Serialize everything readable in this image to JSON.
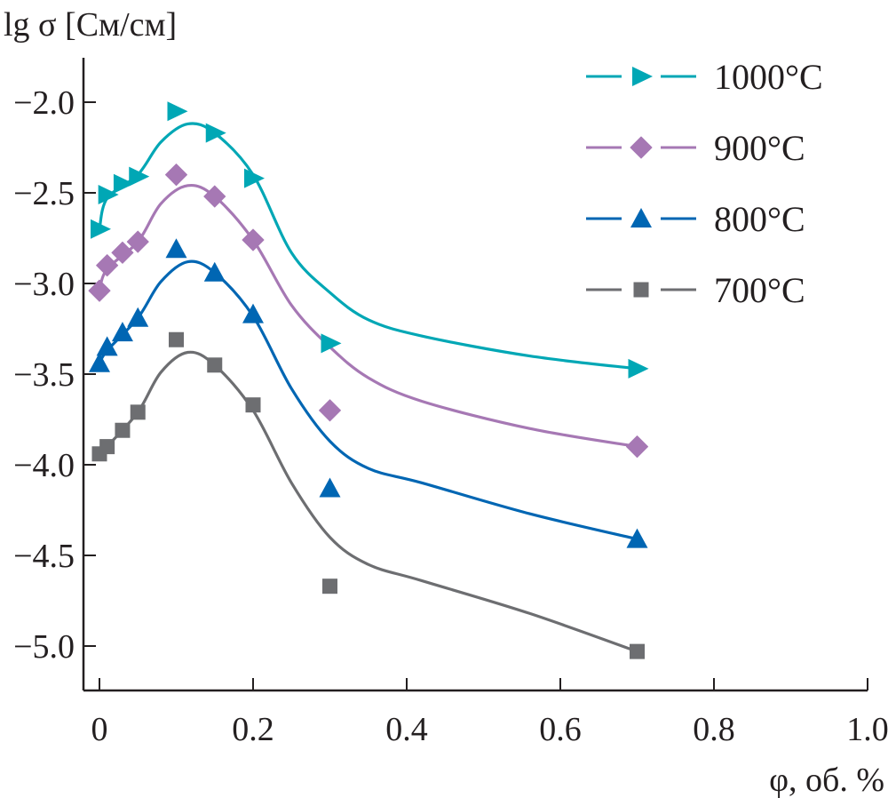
{
  "chart_data": {
    "type": "scatter",
    "title": "",
    "ylabel": "lg σ [См/см]",
    "xlabel": "φ, об. %",
    "xlim": [
      -0.015,
      1.0
    ],
    "ylim": [
      -5.25,
      -1.75
    ],
    "xticks": [
      0,
      0.2,
      0.4,
      0.6,
      0.8,
      1.0
    ],
    "xtick_labels": [
      "0",
      "0.2",
      "0.4",
      "0.6",
      "0.8",
      "1.0"
    ],
    "yticks": [
      -2.0,
      -2.5,
      -3.0,
      -3.5,
      -4.0,
      -4.5,
      -5.0
    ],
    "ytick_labels": [
      "−2.0",
      "−2.5",
      "−3.0",
      "−3.5",
      "−4.0",
      "−4.5",
      "−5.0"
    ],
    "grid": false,
    "legend_position": "top-right",
    "x": [
      0,
      0.01,
      0.03,
      0.05,
      0.1,
      0.15,
      0.2,
      0.3,
      0.7
    ],
    "series": [
      {
        "name": "1000°C",
        "color": "#00a7b5",
        "marker": "triangle-right",
        "values": [
          -2.7,
          -2.51,
          -2.45,
          -2.41,
          -2.05,
          -2.17,
          -2.42,
          -3.33,
          -3.47
        ],
        "fit_curve": [
          [
            0,
            -2.7
          ],
          [
            0.01,
            -2.53
          ],
          [
            0.05,
            -2.4
          ],
          [
            0.08,
            -2.22
          ],
          [
            0.115,
            -2.12
          ],
          [
            0.15,
            -2.17
          ],
          [
            0.2,
            -2.4
          ],
          [
            0.25,
            -2.83
          ],
          [
            0.3,
            -3.05
          ],
          [
            0.35,
            -3.2
          ],
          [
            0.42,
            -3.29
          ],
          [
            0.56,
            -3.4
          ],
          [
            0.7,
            -3.47
          ]
        ]
      },
      {
        "name": "900°C",
        "color": "#a678b4",
        "marker": "diamond",
        "values": [
          -3.04,
          -2.9,
          -2.83,
          -2.77,
          -2.4,
          -2.52,
          -2.76,
          -3.7,
          -3.9
        ],
        "fit_curve": [
          [
            0,
            -3.04
          ],
          [
            0.01,
            -2.92
          ],
          [
            0.05,
            -2.77
          ],
          [
            0.08,
            -2.56
          ],
          [
            0.115,
            -2.46
          ],
          [
            0.15,
            -2.52
          ],
          [
            0.2,
            -2.76
          ],
          [
            0.25,
            -3.12
          ],
          [
            0.3,
            -3.35
          ],
          [
            0.35,
            -3.52
          ],
          [
            0.42,
            -3.65
          ],
          [
            0.56,
            -3.8
          ],
          [
            0.7,
            -3.9
          ]
        ]
      },
      {
        "name": "800°C",
        "color": "#0066b3",
        "marker": "triangle-up",
        "values": [
          -3.44,
          -3.35,
          -3.27,
          -3.19,
          -2.81,
          -2.94,
          -3.17,
          -4.13,
          -4.41
        ],
        "fit_curve": [
          [
            0,
            -3.44
          ],
          [
            0.01,
            -3.37
          ],
          [
            0.05,
            -3.19
          ],
          [
            0.08,
            -2.99
          ],
          [
            0.115,
            -2.88
          ],
          [
            0.15,
            -2.94
          ],
          [
            0.2,
            -3.18
          ],
          [
            0.25,
            -3.58
          ],
          [
            0.3,
            -3.87
          ],
          [
            0.35,
            -4.02
          ],
          [
            0.42,
            -4.1
          ],
          [
            0.56,
            -4.27
          ],
          [
            0.7,
            -4.41
          ]
        ]
      },
      {
        "name": "700°C",
        "color": "#6d6e71",
        "marker": "square",
        "values": [
          -3.94,
          -3.9,
          -3.81,
          -3.71,
          -3.31,
          -3.45,
          -3.67,
          -4.67,
          -5.03
        ],
        "fit_curve": [
          [
            0,
            -3.96
          ],
          [
            0.01,
            -3.9
          ],
          [
            0.05,
            -3.71
          ],
          [
            0.08,
            -3.49
          ],
          [
            0.115,
            -3.38
          ],
          [
            0.15,
            -3.45
          ],
          [
            0.2,
            -3.7
          ],
          [
            0.25,
            -4.1
          ],
          [
            0.3,
            -4.4
          ],
          [
            0.35,
            -4.55
          ],
          [
            0.42,
            -4.64
          ],
          [
            0.56,
            -4.82
          ],
          [
            0.7,
            -5.03
          ]
        ]
      }
    ]
  }
}
